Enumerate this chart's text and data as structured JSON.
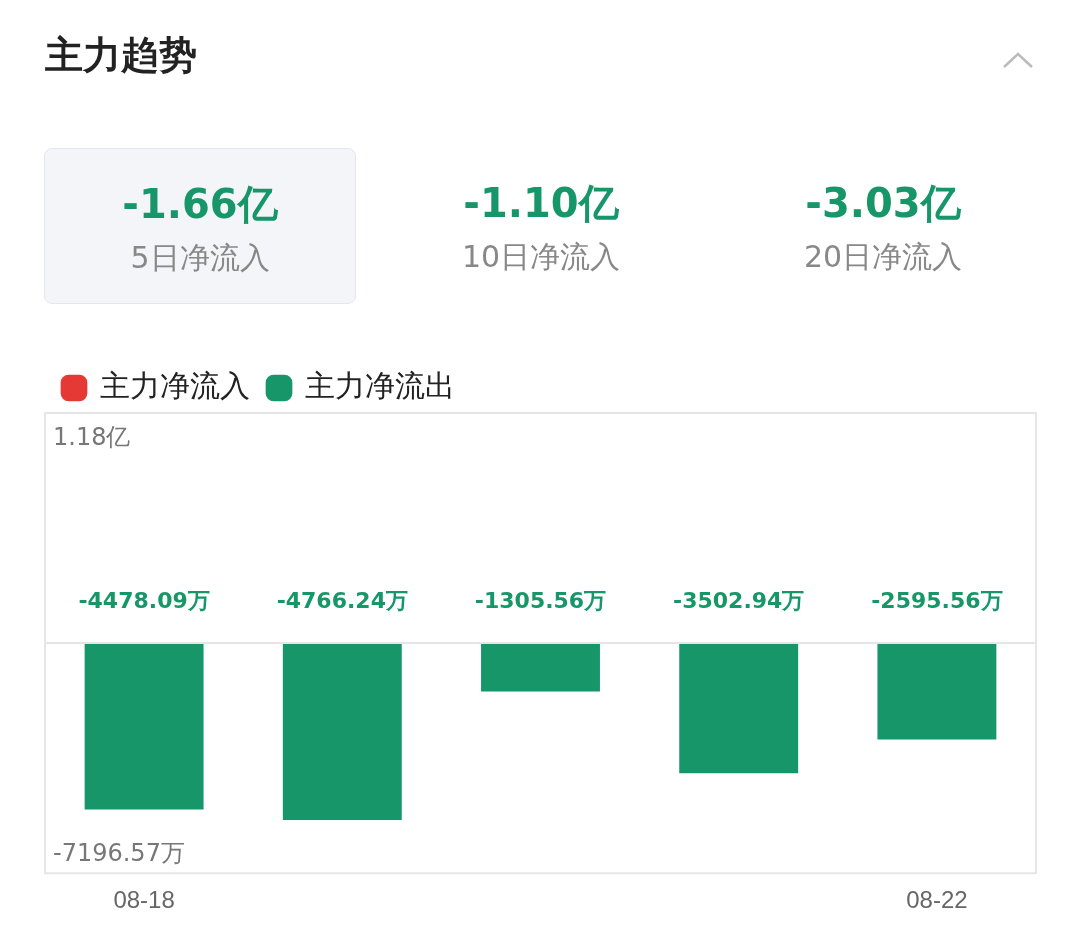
{
  "chart_data": [
    {
      "type": "other",
      "title": "主力趋势",
      "annotations": [
        "-1.66亿",
        "5日净流入",
        "-1.10亿",
        "10日净流入",
        "-3.03亿",
        "20日净流入"
      ]
    },
    {
      "type": "bar",
      "categories": [
        "08-18",
        null,
        null,
        null,
        "08-22"
      ],
      "series": [
        {
          "name": "主力净流入",
          "color": "#e53935",
          "values": [
            null,
            null,
            null,
            null,
            null
          ]
        },
        {
          "name": "主力净流出",
          "color": "#17966a",
          "values": [
            -4478.09,
            -4766.24,
            -1305.56,
            -3502.94,
            -2595.56
          ],
          "value_labels": [
            "-4478.09万",
            "-4766.24万",
            "-1305.56万",
            "-3502.94万",
            "-2595.56万"
          ]
        }
      ],
      "annotations": [
        "1.18亿",
        "-7196.57万"
      ],
      "ref_lines": [
        {
          "axis": "y",
          "value": 0,
          "color": "#e6e6e6"
        }
      ],
      "stacked": true,
      "grid": false,
      "legend": "top left"
    }
  ]
}
